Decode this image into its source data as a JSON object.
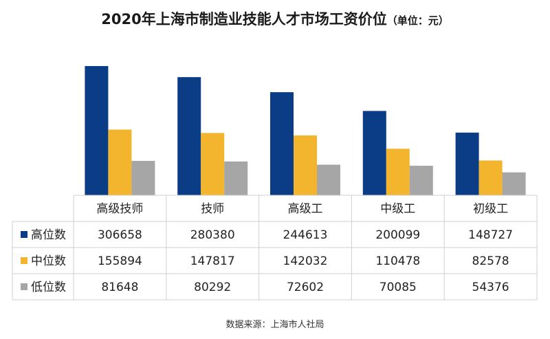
{
  "chart_data": {
    "type": "bar",
    "title": "2020年上海市制造业技能人才市场工资价位",
    "unit_note": "（单位：元）",
    "categories": [
      "高级技师",
      "技师",
      "高级工",
      "中级工",
      "初级工"
    ],
    "series": [
      {
        "name": "高位数",
        "values": [
          306658,
          280380,
          244613,
          200099,
          148727
        ],
        "color": "#0b3c86"
      },
      {
        "name": "中位数",
        "values": [
          155894,
          147817,
          142032,
          110478,
          82578
        ],
        "color": "#f3b52e"
      },
      {
        "name": "低位数",
        "values": [
          81648,
          80292,
          72602,
          70085,
          54376
        ],
        "color": "#a6a6a6"
      }
    ],
    "ylim": [
      0,
      310000
    ],
    "legend": "data-table",
    "grid": false
  },
  "source": "数据来源：上海市人社局"
}
